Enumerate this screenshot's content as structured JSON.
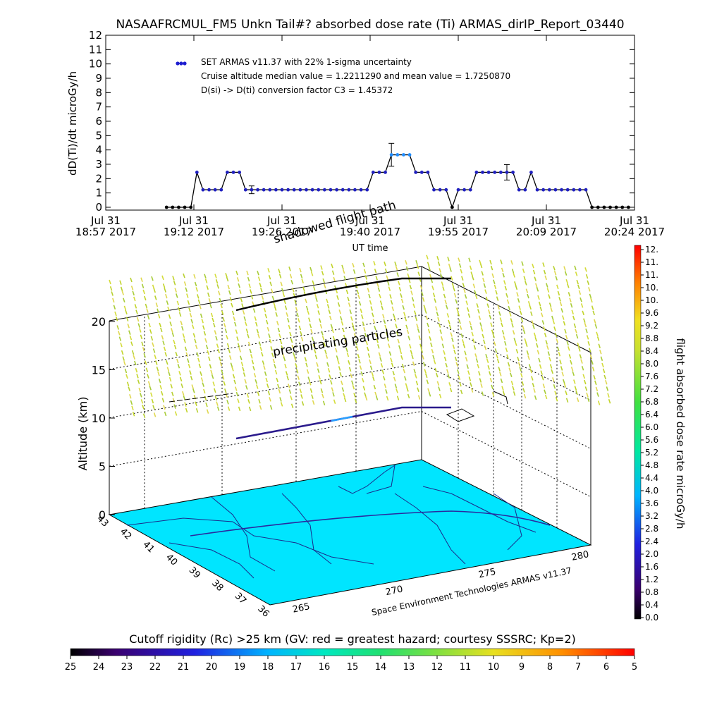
{
  "title": "NASAAFRCMUL_FM5 Unkn Tail#? absorbed dose rate (Ti) ARMAS_dirIP_Report_03440",
  "chart_data": [
    {
      "type": "scatter",
      "title": "NASAAFRCMUL_FM5 Unkn Tail#? absorbed dose rate (Ti) ARMAS_dirIP_Report_03440",
      "ylabel": "dD(Ti)/dt microGy/h",
      "xlabel": "UT time",
      "ylim": [
        0,
        12
      ],
      "yticks": [
        "0",
        "1",
        "2",
        "3",
        "4",
        "5",
        "6",
        "7",
        "8",
        "9",
        "10",
        "11",
        "12"
      ],
      "xticks": [
        {
          "top": "Jul 31",
          "bottom": "18:57 2017"
        },
        {
          "top": "Jul 31",
          "bottom": "19:12 2017"
        },
        {
          "top": "Jul 31",
          "bottom": "19:26 2017"
        },
        {
          "top": "Jul 31",
          "bottom": "19:40 2017"
        },
        {
          "top": "Jul 31",
          "bottom": "19:55 2017"
        },
        {
          "top": "Jul 31",
          "bottom": "20:09 2017"
        },
        {
          "top": "Jul 31",
          "bottom": "20:24 2017"
        }
      ],
      "x_unit": "minutes after 18:57 UT",
      "annotations": [
        "SET ARMAS v11.37 with 22% 1-sigma uncertainty",
        "Cruise altitude median value = 1.2211290 and mean value = 1.7250870",
        "D(si) -> D(ti) conversion factor C3 = 1.45372"
      ],
      "legend": "SET ARMAS v11.37 with 22% 1-sigma uncertainty",
      "series": [
        {
          "name": "SET ARMAS v11.37",
          "x": [
            10,
            11,
            12,
            13,
            14,
            15,
            16,
            17,
            18,
            19,
            20,
            21,
            22,
            23,
            24,
            25,
            26,
            27,
            28,
            29,
            30,
            31,
            32,
            33,
            34,
            35,
            36,
            37,
            38,
            39,
            40,
            41,
            42,
            43,
            44,
            45,
            46,
            47,
            48,
            49,
            50,
            51,
            52,
            53,
            54,
            55,
            56,
            57,
            58,
            59,
            60,
            61,
            62,
            63,
            64,
            65,
            66,
            67,
            68,
            69,
            70,
            71,
            72,
            73,
            74,
            75,
            76,
            77,
            78,
            79,
            80,
            81,
            82,
            83,
            84,
            85,
            86
          ],
          "y": [
            0,
            0,
            0,
            0,
            0,
            2.44,
            1.22,
            1.22,
            1.22,
            1.22,
            2.44,
            2.44,
            2.44,
            1.22,
            1.22,
            1.22,
            1.22,
            1.22,
            1.22,
            1.22,
            1.22,
            1.22,
            1.22,
            1.22,
            1.22,
            1.22,
            1.22,
            1.22,
            1.22,
            1.22,
            1.22,
            1.22,
            1.22,
            1.22,
            2.44,
            2.44,
            2.44,
            3.66,
            3.66,
            3.66,
            3.66,
            2.44,
            2.44,
            2.44,
            1.22,
            1.22,
            1.22,
            0,
            1.22,
            1.22,
            1.22,
            2.44,
            2.44,
            2.44,
            2.44,
            2.44,
            2.44,
            2.44,
            1.22,
            1.22,
            2.44,
            1.22,
            1.22,
            1.22,
            1.22,
            1.22,
            1.22,
            1.22,
            1.22,
            1.22,
            0,
            0,
            0,
            0,
            0,
            0,
            0
          ],
          "error_bars": [
            {
              "x": 24,
              "y": 1.22,
              "err": 0.27
            },
            {
              "x": 47,
              "y": 3.66,
              "err": 0.8
            },
            {
              "x": 66,
              "y": 2.44,
              "err": 0.54
            }
          ]
        }
      ]
    },
    {
      "type": "3d-scatter",
      "zlabel": "Altitude (km)",
      "zticks": [
        "0",
        "5",
        "10",
        "15",
        "20"
      ],
      "lat_ticks": [
        "43",
        "42",
        "41",
        "40",
        "39",
        "38",
        "37",
        "36"
      ],
      "lon_ticks": [
        "265",
        "270",
        "275",
        "280"
      ],
      "annotations": [
        "shadowed flight path",
        "precipitating particles",
        "Space Environment Technologies ARMAS v11.37"
      ],
      "colorbar": {
        "label": "flight absorbed dose rate microGy/h",
        "ticks": [
          "0.0",
          "0.4",
          "0.8",
          "1.2",
          "1.6",
          "2.0",
          "2.4",
          "2.8",
          "3.2",
          "3.6",
          "4.0",
          "4.4",
          "4.8",
          "5.2",
          "5.6",
          "6.0",
          "6.4",
          "6.8",
          "7.2",
          "7.6",
          "8.0",
          "8.4",
          "8.8",
          "9.2",
          "9.6",
          "10.",
          "10.",
          "11.",
          "11.",
          "12."
        ],
        "range": [
          0,
          12
        ]
      }
    },
    {
      "type": "colorbar",
      "title": "Cutoff rigidity (Rc) >25 km (GV: red = greatest hazard; courtesy SSSRC; Kp=2)",
      "ticks": [
        "25",
        "24",
        "23",
        "22",
        "21",
        "20",
        "19",
        "18",
        "17",
        "16",
        "15",
        "14",
        "13",
        "12",
        "11",
        "10",
        "9",
        "8",
        "7",
        "6",
        "5"
      ],
      "range": [
        25,
        5
      ]
    }
  ],
  "colors": {
    "marker": "#1e1ecf",
    "ground": "#00e5ff",
    "particles": "#c8d22a"
  }
}
